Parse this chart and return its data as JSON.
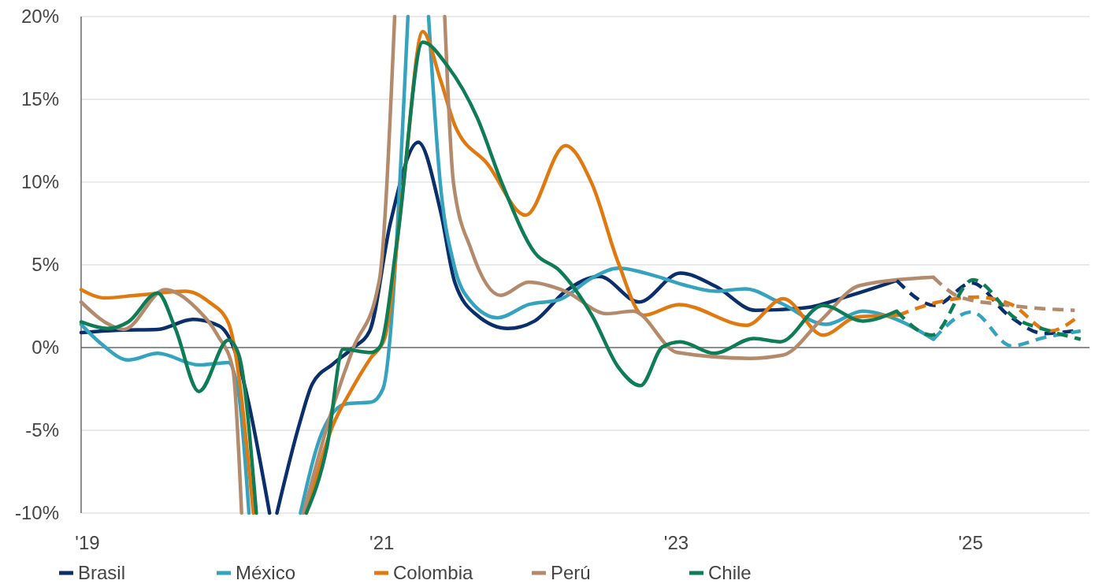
{
  "chart_data": {
    "type": "line",
    "xlim": [
      2019,
      2025.85
    ],
    "ylim": [
      -10,
      20
    ],
    "xticks": [
      {
        "value": 2019,
        "label": "'19"
      },
      {
        "value": 2021,
        "label": "'21"
      },
      {
        "value": 2023,
        "label": "'23"
      },
      {
        "value": 2025,
        "label": "'25"
      }
    ],
    "yticks": [
      {
        "value": -10,
        "label": "-10%"
      },
      {
        "value": -5,
        "label": "-5%"
      },
      {
        "value": 0,
        "label": "0%"
      },
      {
        "value": 5,
        "label": "5%"
      },
      {
        "value": 10,
        "label": "10%"
      },
      {
        "value": 15,
        "label": "15%"
      },
      {
        "value": 20,
        "label": "20%"
      }
    ],
    "grid": "y",
    "legend": "bottom left",
    "line_style": "solid",
    "marker": "none",
    "ref_lines": [
      {
        "axis": "y",
        "value": 0,
        "color": "#333333"
      }
    ],
    "series": [
      {
        "name": "Brasil",
        "color": "#0b2f6b",
        "x": [
          2019,
          2019.25,
          2019.52,
          2019.76,
          2019.94,
          2020,
          2020.28,
          2020.3,
          2020.33,
          2020.49,
          2020.57,
          2020.71,
          2020.85,
          2020.96,
          2021.1,
          2021.29,
          2021.44,
          2021.54,
          2021.69,
          2021.9,
          2022.08,
          2022.29,
          2022.52,
          2022.79,
          2023.07,
          2023.31,
          2023.58,
          2023.92,
          2024.21,
          2024.54
        ],
        "values": [
          0.9,
          1.05,
          1.1,
          1.7,
          1.3,
          0.7,
          -10,
          null,
          -10,
          -4.4,
          -2.2,
          -1,
          0,
          1,
          7.5,
          12.4,
          8.3,
          3.9,
          1.95,
          1.15,
          1.6,
          3.4,
          4.3,
          2.75,
          4.5,
          3.7,
          2.25,
          2.4,
          3.1,
          4.05
        ]
      },
      {
        "name": "México",
        "color": "#35a3bd",
        "x": [
          2019,
          2019.14,
          2019.32,
          2019.52,
          2019.8,
          2020,
          2020.07,
          2020.14,
          2020.3,
          2020.49,
          2020.64,
          2020.8,
          2020.97,
          2021.05,
          2021.22,
          2021.29,
          2021.36,
          2021.44,
          2021.53,
          2021.65,
          2021.83,
          2022.04,
          2022.25,
          2022.47,
          2022.65,
          2022.91,
          2023.09,
          2023.31,
          2023.51,
          2023.75,
          2024.06,
          2024.31,
          2024.54,
          2024.79
        ],
        "values": [
          1.4,
          0.2,
          -0.75,
          -0.35,
          -1.05,
          -0.9,
          -2.8,
          -10,
          null,
          -10,
          -5.05,
          -3.4,
          -3.3,
          -2.5,
          20,
          null,
          20,
          9.9,
          5.1,
          2.75,
          1.8,
          2.6,
          2.9,
          4.2,
          4.8,
          4.3,
          3.8,
          3.4,
          3.55,
          2.7,
          1.4,
          2.2,
          1.7,
          0.5
        ]
      },
      {
        "name": "Colombia",
        "color": "#e07a10",
        "x": [
          2019,
          2019.16,
          2019.37,
          2019.71,
          2019.87,
          2020,
          2020.17,
          2020.35,
          2020.53,
          2020.71,
          2020.83,
          2020.97,
          2021.06,
          2021.19,
          2021.32,
          2021.44,
          2021.54,
          2021.76,
          2022.02,
          2022.29,
          2022.47,
          2022.65,
          2022.82,
          2023.06,
          2023.52,
          2023.77,
          2024.04,
          2024.27,
          2024.55
        ],
        "values": [
          3.5,
          3,
          3.15,
          3.4,
          2.75,
          1.5,
          -10,
          null,
          -10,
          -4.7,
          -2.65,
          -0.6,
          0.5,
          9.9,
          19.1,
          16.2,
          13.4,
          11.1,
          8,
          12.2,
          9.9,
          5.1,
          1.95,
          2.6,
          1.35,
          2.95,
          0.75,
          1.85,
          1.95
        ]
      },
      {
        "name": "Perú",
        "color": "#b38a6b",
        "x": [
          2019,
          2019.2,
          2019.29,
          2019.57,
          2019.78,
          2019.93,
          2020.03,
          2020.09,
          2020.3,
          2020.51,
          2020.71,
          2020.85,
          2021.01,
          2021.03,
          2021.13,
          2021.3,
          2021.47,
          2021.53,
          2021.65,
          2021.85,
          2022.04,
          2022.29,
          2022.57,
          2022.75,
          2023.05,
          2023.54,
          2023.77,
          2024.02,
          2024.29,
          2024.79
        ],
        "values": [
          2.75,
          1.35,
          1.1,
          3.5,
          2.4,
          0.7,
          -1.25,
          -10,
          null,
          -10,
          -3.6,
          0,
          3.4,
          4.3,
          20,
          null,
          20,
          9.9,
          5.9,
          3.15,
          3.95,
          3.4,
          2.05,
          2.2,
          -0.3,
          -0.65,
          -0.45,
          1.6,
          3.75,
          4.25
        ]
      },
      {
        "name": "Chile",
        "color": "#0e7c55",
        "x": [
          2019,
          2019.18,
          2019.32,
          2019.52,
          2019.64,
          2019.8,
          2020,
          2020.07,
          2020.19,
          2020.35,
          2020.53,
          2020.67,
          2020.78,
          2020.97,
          2021.03,
          2021.15,
          2021.32,
          2021.49,
          2021.69,
          2021.86,
          2022.08,
          2022.25,
          2022.47,
          2022.65,
          2022.8,
          2022.95,
          2023.07,
          2023.3,
          2023.57,
          2023.75,
          2024.04,
          2024.31,
          2024.54
        ],
        "values": [
          1.55,
          1.15,
          1.55,
          3.3,
          1.15,
          -2.65,
          0.45,
          -0.4,
          -10,
          null,
          -10,
          -6,
          -0.1,
          -0.3,
          0.05,
          6.7,
          18.45,
          17,
          13.9,
          9.9,
          5.75,
          4.65,
          1.95,
          -1.2,
          -2.3,
          0.05,
          0.35,
          -0.35,
          0.55,
          0.35,
          2.55,
          1.6,
          2.2
        ]
      },
      {
        "color": "#0b2f6b",
        "line_style": "dashed",
        "x": [
          2024.54,
          2024.8,
          2025.05,
          2025.3,
          2025.54,
          2025.74
        ],
        "values": [
          4.05,
          2.55,
          3.9,
          1.95,
          0.85,
          1
        ]
      },
      {
        "color": "#35a3bd",
        "line_style": "dashed",
        "x": [
          2024.79,
          2025.05,
          2025.32,
          2025.54,
          2025.79
        ],
        "values": [
          0.5,
          2.15,
          0.1,
          0.6,
          1
        ]
      },
      {
        "color": "#e07a10",
        "line_style": "dashed",
        "x": [
          2024.55,
          2024.8,
          2025.08,
          2025.32,
          2025.58,
          2025.77
        ],
        "values": [
          1.95,
          2.7,
          3.05,
          2.6,
          1,
          1.85
        ]
      },
      {
        "color": "#b38a6b",
        "line_style": "dashed",
        "x": [
          2024.79,
          2024.97,
          2025.26,
          2025.54,
          2025.75
        ],
        "values": [
          4.25,
          3.05,
          2.6,
          2.35,
          2.25
        ]
      },
      {
        "color": "#0e7c55",
        "line_style": "dashed",
        "x": [
          2024.54,
          2024.78,
          2025.06,
          2025.35,
          2025.58,
          2025.79
        ],
        "values": [
          2.2,
          0.75,
          4.1,
          1.75,
          1,
          0.5
        ]
      }
    ]
  }
}
